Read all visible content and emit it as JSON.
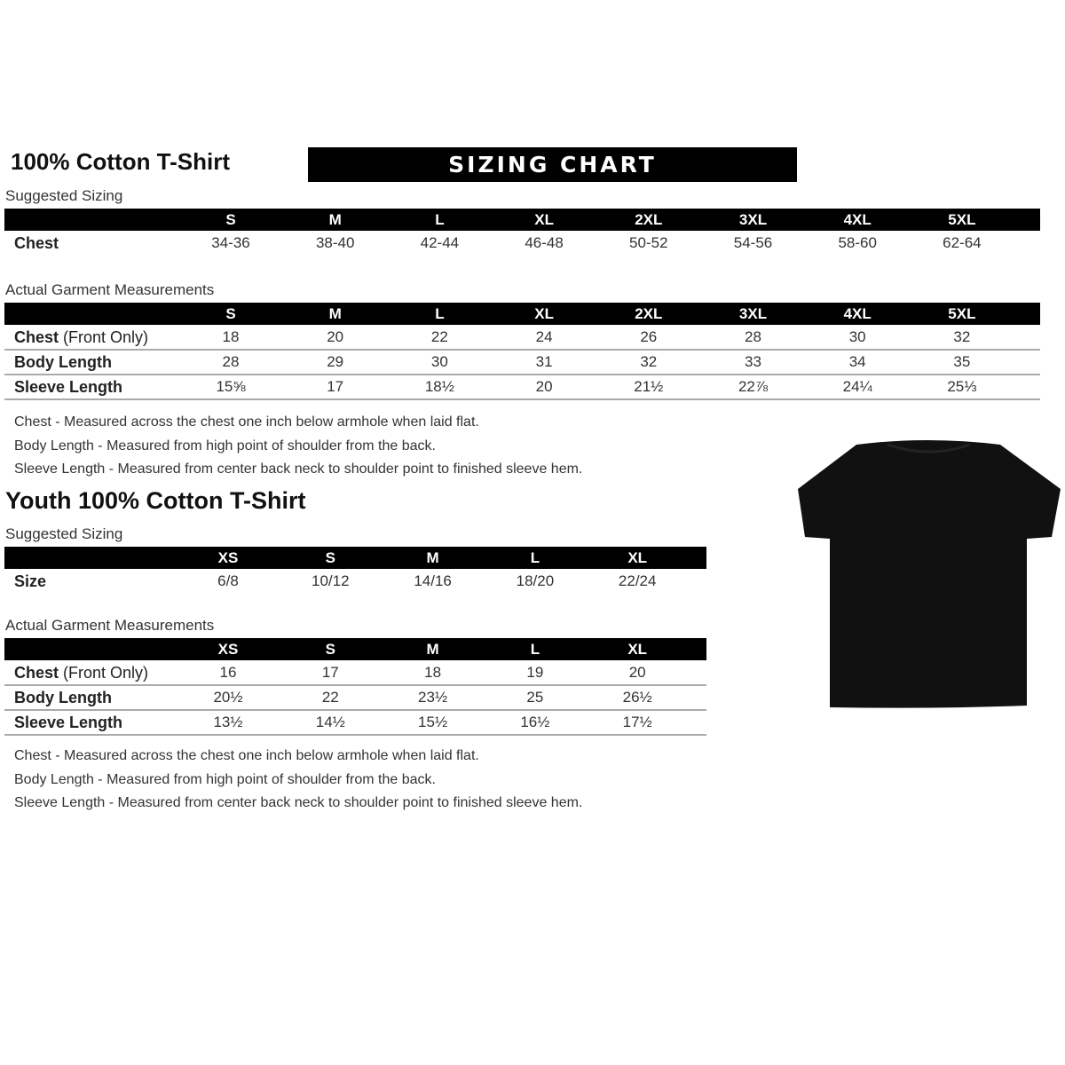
{
  "adult": {
    "title": "100% Cotton T-Shirt",
    "banner": "SIZING CHART",
    "suggested_label": "Suggested Sizing",
    "sizes": [
      "S",
      "M",
      "L",
      "XL",
      "2XL",
      "3XL",
      "4XL",
      "5XL"
    ],
    "suggested_rows": [
      {
        "label": "Chest",
        "values": [
          "34-36",
          "38-40",
          "42-44",
          "46-48",
          "50-52",
          "54-56",
          "58-60",
          "62-64"
        ]
      }
    ],
    "actual_label": "Actual Garment Measurements",
    "actual_rows": [
      {
        "label": "Chest",
        "label_suffix": " (Front Only)",
        "values": [
          "18",
          "20",
          "22",
          "24",
          "26",
          "28",
          "30",
          "32"
        ]
      },
      {
        "label": "Body Length",
        "label_suffix": "",
        "values": [
          "28",
          "29",
          "30",
          "31",
          "32",
          "33",
          "34",
          "35"
        ]
      },
      {
        "label": "Sleeve Length",
        "label_suffix": "",
        "values": [
          "15⅝",
          "17",
          "18½",
          "20",
          "21½",
          "22⅞",
          "24¼",
          "25⅓"
        ]
      }
    ],
    "notes": [
      "Chest - Measured across the chest one inch below armhole when laid flat.",
      "Body Length - Measured from high point of shoulder from the back.",
      "Sleeve Length - Measured from center back neck to shoulder point to finished sleeve hem."
    ]
  },
  "youth": {
    "title": "Youth 100% Cotton T-Shirt",
    "suggested_label": "Suggested Sizing",
    "sizes": [
      "XS",
      "S",
      "M",
      "L",
      "XL"
    ],
    "suggested_rows": [
      {
        "label": "Size",
        "values": [
          "6/8",
          "10/12",
          "14/16",
          "18/20",
          "22/24"
        ]
      }
    ],
    "actual_label": "Actual Garment Measurements",
    "actual_rows": [
      {
        "label": "Chest",
        "label_suffix": " (Front Only)",
        "values": [
          "16",
          "17",
          "18",
          "19",
          "20"
        ]
      },
      {
        "label": "Body Length",
        "label_suffix": "",
        "values": [
          "20½",
          "22",
          "23½",
          "25",
          "26½"
        ]
      },
      {
        "label": "Sleeve Length",
        "label_suffix": "",
        "values": [
          "13½",
          "14½",
          "15½",
          "16½",
          "17½"
        ]
      }
    ],
    "notes": [
      "Chest - Measured across the chest one inch below armhole when laid flat.",
      "Body Length - Measured from high point of shoulder from the back.",
      "Sleeve Length - Measured from center back neck to shoulder point to finished sleeve hem."
    ]
  },
  "tshirt_color": "#111111"
}
